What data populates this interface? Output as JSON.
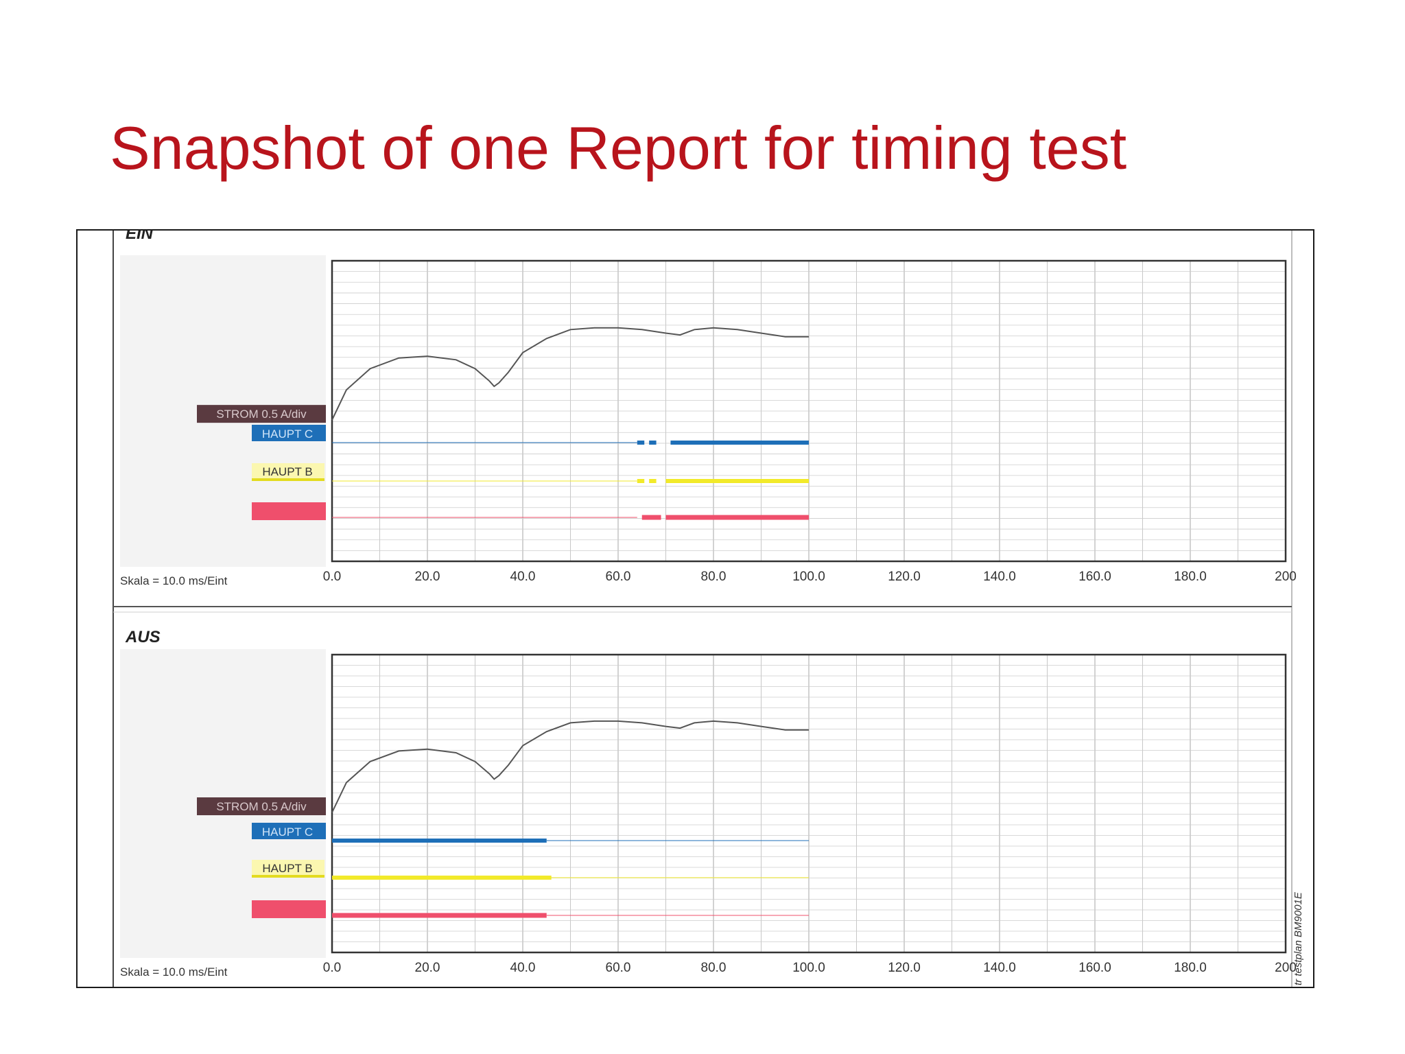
{
  "title": "Snapshot of one Report for timing test",
  "colors": {
    "title": "#b8141c",
    "strom": "#5a3a40",
    "haupt_c": "#1e6fb8",
    "haupt_b": "#f2ea2a",
    "haupt_a": "#ef4f6c",
    "grid": "#b9b9b9",
    "current_trace": "#555555"
  },
  "side_text": "tr testplan BM9001E",
  "chart_data": [
    {
      "type": "line",
      "title": "EIN",
      "scale_label": "Skala = 10.0 ms/Eint",
      "x_tick_labels": [
        "0.0",
        "20.0",
        "40.0",
        "60.0",
        "80.0",
        "100.0",
        "120.0",
        "140.0",
        "160.0",
        "180.0",
        "200"
      ],
      "xlim": [
        0,
        200
      ],
      "grid": true,
      "labels": {
        "strom": "STROM 0.5 A/div",
        "haupt_c": "HAUPT C",
        "haupt_b": "HAUPT B",
        "haupt_a": ""
      },
      "current_curve": {
        "x": [
          0,
          3,
          8,
          14,
          20,
          26,
          30,
          33,
          34,
          35,
          37,
          40,
          45,
          50,
          55,
          60,
          65,
          70,
          73,
          76,
          80,
          85,
          90,
          95,
          100
        ],
        "y": [
          0.0,
          0.17,
          0.29,
          0.35,
          0.36,
          0.34,
          0.29,
          0.22,
          0.19,
          0.21,
          0.27,
          0.38,
          0.46,
          0.51,
          0.52,
          0.52,
          0.51,
          0.49,
          0.48,
          0.51,
          0.52,
          0.51,
          0.49,
          0.47,
          0.47
        ]
      },
      "contact_signals": [
        {
          "name": "HAUPT C",
          "idle_x": [
            0,
            64
          ],
          "closed": [
            [
              64,
              65.5
            ],
            [
              66.5,
              68
            ],
            [
              71,
              100
            ]
          ]
        },
        {
          "name": "HAUPT B",
          "idle_x": [
            0,
            64
          ],
          "closed": [
            [
              64,
              65.5
            ],
            [
              66.5,
              68
            ],
            [
              70,
              100
            ]
          ]
        },
        {
          "name": "",
          "idle_x": [
            0,
            64
          ],
          "closed": [
            [
              65,
              69
            ],
            [
              70,
              100
            ]
          ]
        }
      ]
    },
    {
      "type": "line",
      "title": "AUS",
      "scale_label": "Skala = 10.0 ms/Eint",
      "x_tick_labels": [
        "0.0",
        "20.0",
        "40.0",
        "60.0",
        "80.0",
        "100.0",
        "120.0",
        "140.0",
        "160.0",
        "180.0",
        "200"
      ],
      "xlim": [
        0,
        200
      ],
      "grid": true,
      "labels": {
        "strom": "STROM 0.5 A/div",
        "haupt_c": "HAUPT C",
        "haupt_b": "HAUPT B",
        "haupt_a": ""
      },
      "current_curve": {
        "x": [
          0,
          3,
          8,
          14,
          20,
          26,
          30,
          33,
          34,
          35,
          37,
          40,
          45,
          50,
          55,
          60,
          65,
          70,
          73,
          76,
          80,
          85,
          90,
          95,
          100
        ],
        "y": [
          0.0,
          0.17,
          0.29,
          0.35,
          0.36,
          0.34,
          0.29,
          0.22,
          0.19,
          0.21,
          0.27,
          0.38,
          0.46,
          0.51,
          0.52,
          0.52,
          0.51,
          0.49,
          0.48,
          0.51,
          0.52,
          0.51,
          0.49,
          0.47,
          0.47
        ]
      },
      "contact_signals": [
        {
          "name": "HAUPT C",
          "idle_x": [
            45,
            100
          ],
          "closed": [
            [
              0,
              45
            ]
          ]
        },
        {
          "name": "HAUPT B",
          "idle_x": [
            45,
            100
          ],
          "closed": [
            [
              0,
              46
            ]
          ]
        },
        {
          "name": "",
          "idle_x": [
            45,
            100
          ],
          "closed": [
            [
              0,
              45
            ]
          ]
        }
      ]
    }
  ]
}
